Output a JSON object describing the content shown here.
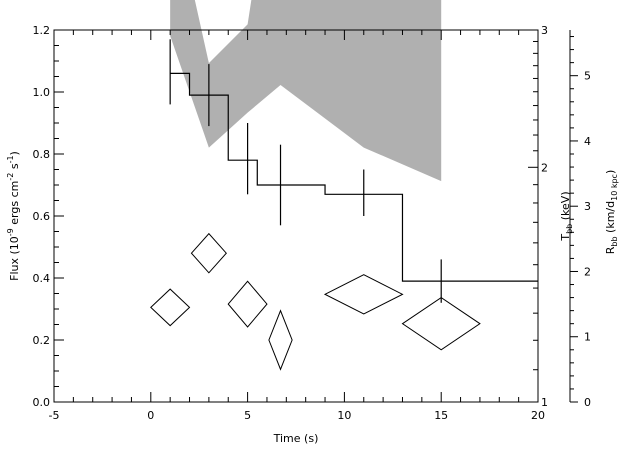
{
  "chart_data": {
    "type": "line",
    "xlabel": "Time (s)",
    "xlim": [
      -5,
      20
    ],
    "x_ticks": [
      -5,
      0,
      5,
      10,
      15,
      20
    ],
    "ylabel": "Flux (10⁻⁹ ergs cm⁻² s⁻¹)",
    "ylim": [
      0.0,
      1.2
    ],
    "y_ticks": [
      0.0,
      0.2,
      0.4,
      0.6,
      0.8,
      1.0,
      1.2
    ],
    "right_axes": [
      {
        "label": "T_bb (keV)",
        "label_main": "T",
        "label_sub": "bb",
        "label_rest": " (keV)",
        "scale": "log",
        "range": [
          1,
          3
        ],
        "ticks": [
          1,
          2,
          3
        ]
      },
      {
        "label": "R_bb (km/d_10 kpc)",
        "label_main": "R",
        "label_sub": "bb",
        "label_rest": " (km/d",
        "label_sub2": "10 kpc",
        "label_end": ")",
        "range": [
          0,
          5.7
        ],
        "ticks": [
          0,
          1,
          2,
          3,
          4,
          5
        ]
      }
    ],
    "series": [
      {
        "kind": "step",
        "axis": "flux",
        "x_edges": [
          1,
          2,
          4,
          5.5,
          9,
          13,
          20
        ],
        "values": [
          1.06,
          0.99,
          0.78,
          0.7,
          0.67,
          0.39
        ],
        "error_bars": [
          {
            "x": 1,
            "y": 1.06,
            "yerr": [
              0.1,
              0.11
            ]
          },
          {
            "x": 3,
            "y": 0.99,
            "yerr": [
              0.1,
              0.1
            ]
          },
          {
            "x": 5,
            "y": 0.78,
            "yerr": [
              0.11,
              0.12
            ]
          },
          {
            "x": 6.7,
            "y": 0.7,
            "yerr": [
              0.13,
              0.13
            ]
          },
          {
            "x": 11,
            "y": 0.67,
            "yerr": [
              0.07,
              0.08
            ]
          },
          {
            "x": 15,
            "y": 0.39,
            "yerr": [
              0.07,
              0.07
            ]
          }
        ]
      },
      {
        "kind": "band",
        "axis": "temperature",
        "x": [
          1,
          3,
          5,
          6.7,
          11,
          15
        ],
        "lower": [
          2.95,
          2.12,
          2.35,
          2.55,
          2.12,
          1.92
        ],
        "upper": [
          4.55,
          2.72,
          3.05,
          5.75,
          3.65,
          3.72
        ],
        "fill": "#b0b0b0"
      },
      {
        "kind": "diamonds",
        "axis": "radius",
        "points": [
          {
            "x": 1,
            "y": 1.45,
            "xerr": 1.0,
            "yerr": 0.28
          },
          {
            "x": 3,
            "y": 2.28,
            "xerr": 0.9,
            "yerr": 0.3
          },
          {
            "x": 5,
            "y": 1.5,
            "xerr": 1.0,
            "yerr": 0.35
          },
          {
            "x": 6.7,
            "y": 0.95,
            "xerr": 0.6,
            "yerr": 0.45
          },
          {
            "x": 11,
            "y": 1.65,
            "xerr": 2.0,
            "yerr": 0.3
          },
          {
            "x": 15,
            "y": 1.2,
            "xerr": 2.0,
            "yerr": 0.4
          }
        ]
      }
    ]
  }
}
